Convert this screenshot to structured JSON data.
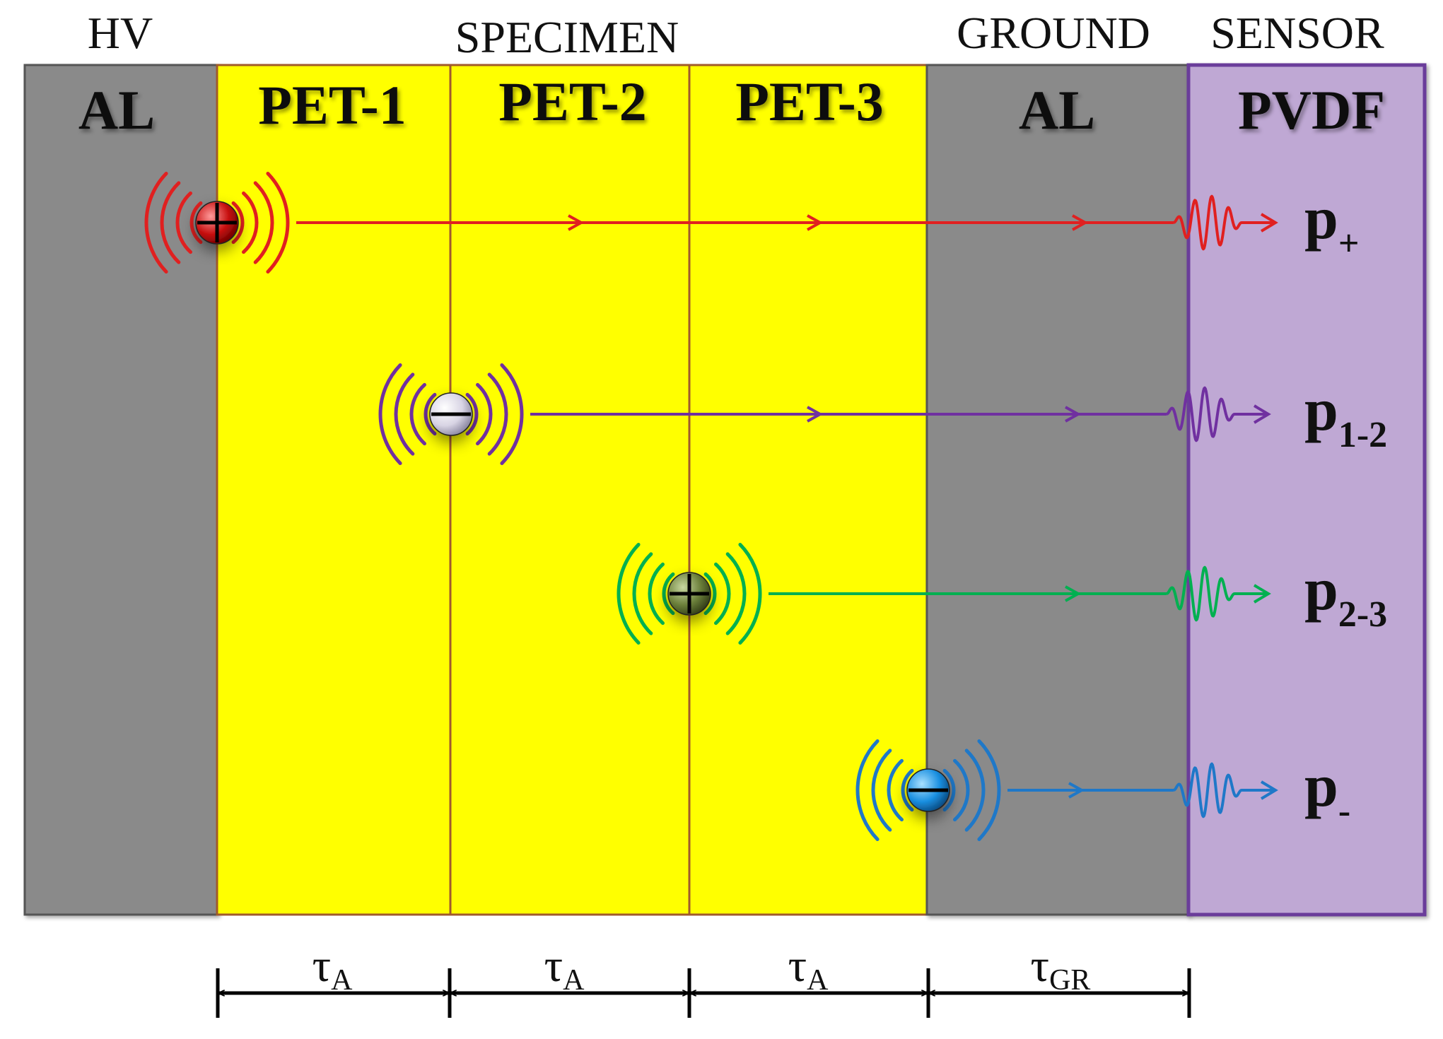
{
  "top_labels": {
    "hv": "HV",
    "specimen": "SPECIMEN",
    "ground": "GROUND",
    "sensor": "SENSOR"
  },
  "layers": [
    {
      "label": "AL",
      "color": "#8a8a8a",
      "role": "hv-electrode"
    },
    {
      "label": "PET-1",
      "color": "#ffff00",
      "role": "specimen"
    },
    {
      "label": "PET-2",
      "color": "#ffff00",
      "role": "specimen"
    },
    {
      "label": "PET-3",
      "color": "#ffff00",
      "role": "specimen"
    },
    {
      "label": "AL",
      "color": "#8a8a8a",
      "role": "ground-electrode"
    },
    {
      "label": "PVDF",
      "color": "#bfa8d4",
      "role": "sensor"
    }
  ],
  "charges": [
    {
      "sign": "+",
      "color": "#e02020",
      "label_main": "p",
      "label_sub": "+"
    },
    {
      "sign": "−",
      "color": "#7030a0",
      "label_main": "p",
      "label_sub": "1-2"
    },
    {
      "sign": "+",
      "color": "#00b050",
      "label_main": "p",
      "label_sub": "2-3"
    },
    {
      "sign": "−",
      "color": "#1f78c8",
      "label_main": "p",
      "label_sub": "-"
    }
  ],
  "transit_times": [
    {
      "main": "τ",
      "sub": "A"
    },
    {
      "main": "τ",
      "sub": "A"
    },
    {
      "main": "τ",
      "sub": "A"
    },
    {
      "main": "τ",
      "sub": "GR"
    }
  ]
}
